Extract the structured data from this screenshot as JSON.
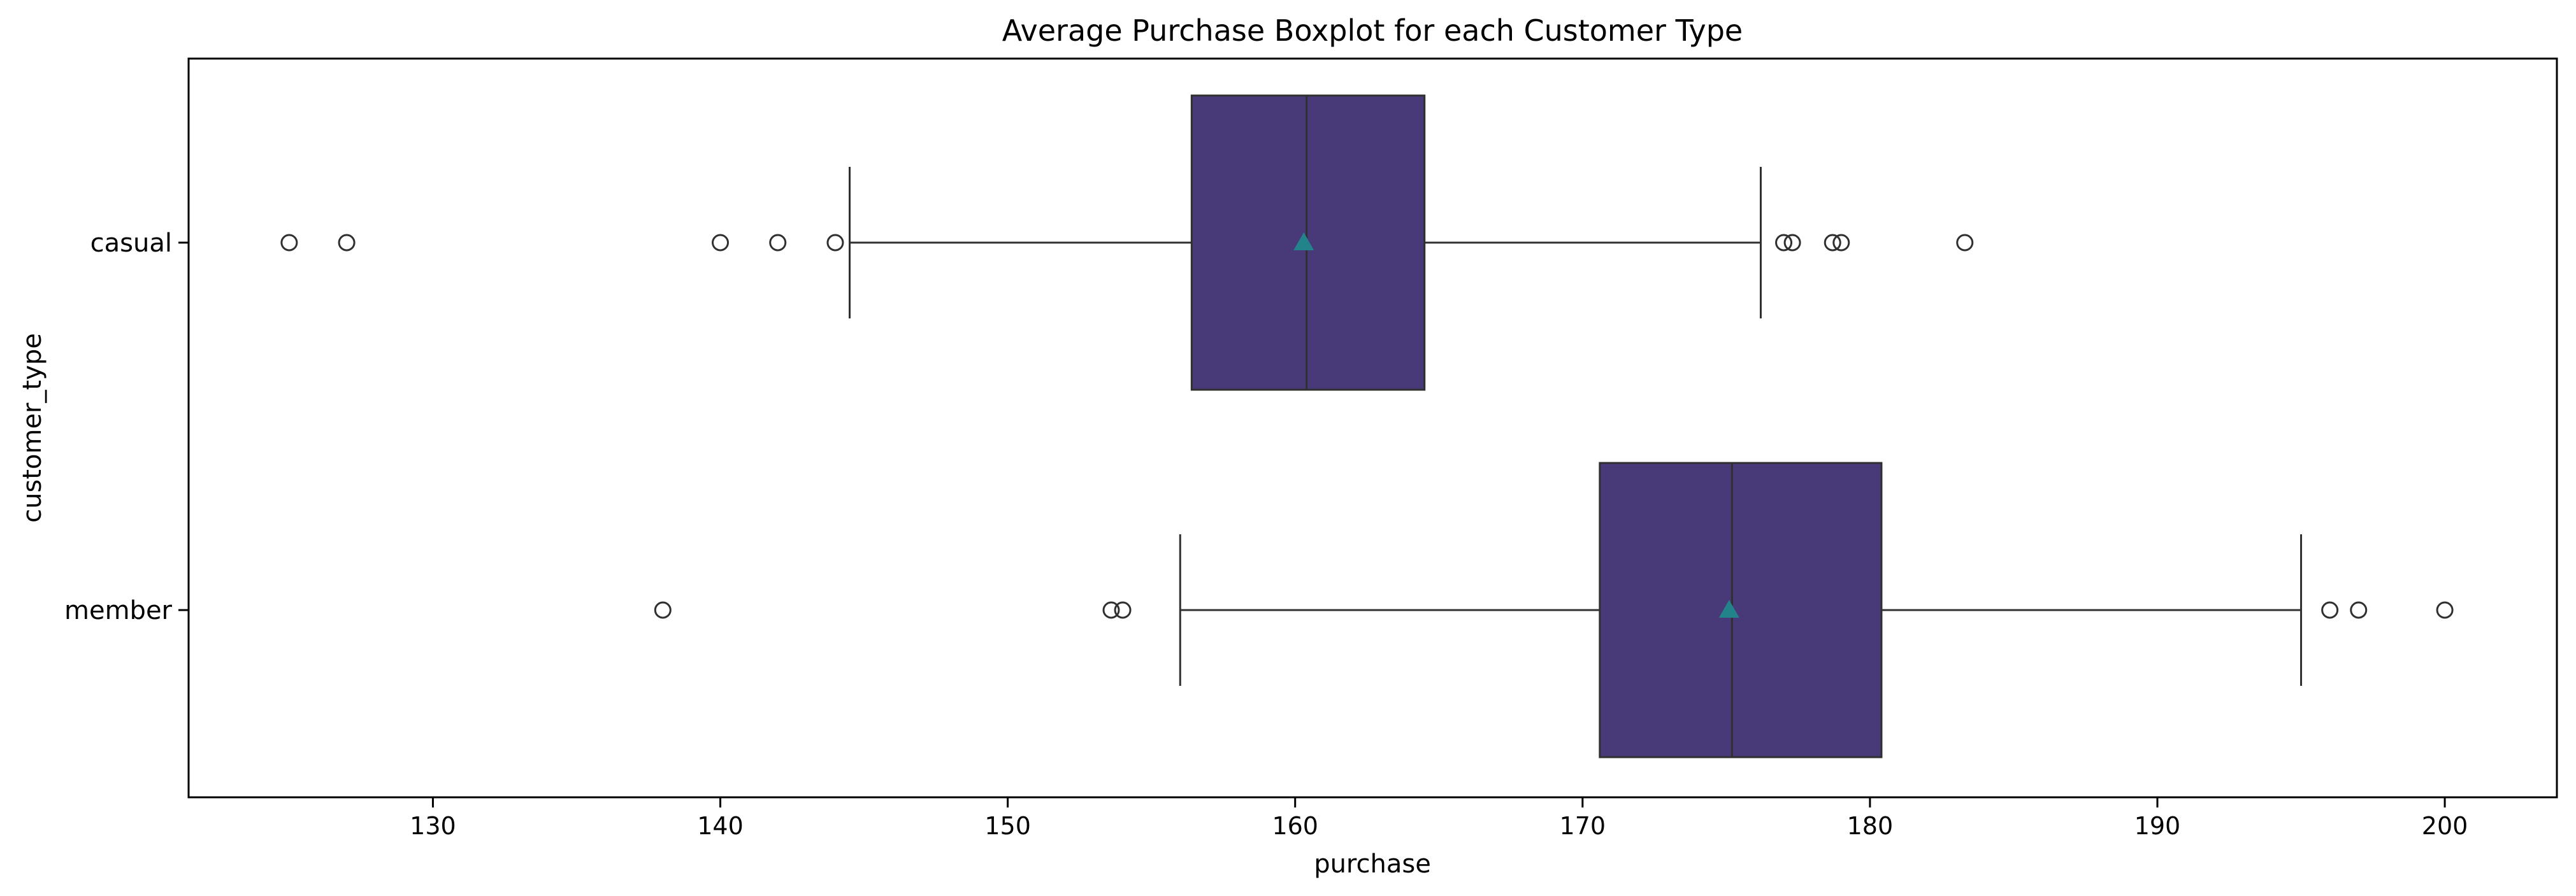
{
  "chart_data": {
    "type": "boxplot",
    "orientation": "horizontal",
    "title": "Average Purchase Boxplot for each Customer Type",
    "xlabel": "purchase",
    "ylabel": "customer_type",
    "xlim": [
      121.5,
      203.9
    ],
    "xticks": [
      130,
      140,
      150,
      160,
      170,
      180,
      190,
      200
    ],
    "categories": [
      "casual",
      "member"
    ],
    "grid": false,
    "box_color": "#483A78",
    "mean_marker_color": "#23838A",
    "line_color": "#303030",
    "series": [
      {
        "category": "casual",
        "whisker_low": 144.5,
        "q1": 156.4,
        "median": 160.4,
        "q3": 164.5,
        "whisker_high": 176.2,
        "mean": 160.3,
        "outliers": [
          125.0,
          127.0,
          140.0,
          142.0,
          144.0,
          177.0,
          177.3,
          178.7,
          179.0,
          183.3
        ]
      },
      {
        "category": "member",
        "whisker_low": 156.0,
        "q1": 170.6,
        "median": 175.2,
        "q3": 180.4,
        "whisker_high": 195.0,
        "mean": 175.1,
        "outliers": [
          138.0,
          153.6,
          154.0,
          196.0,
          197.0,
          200.0
        ]
      }
    ]
  }
}
